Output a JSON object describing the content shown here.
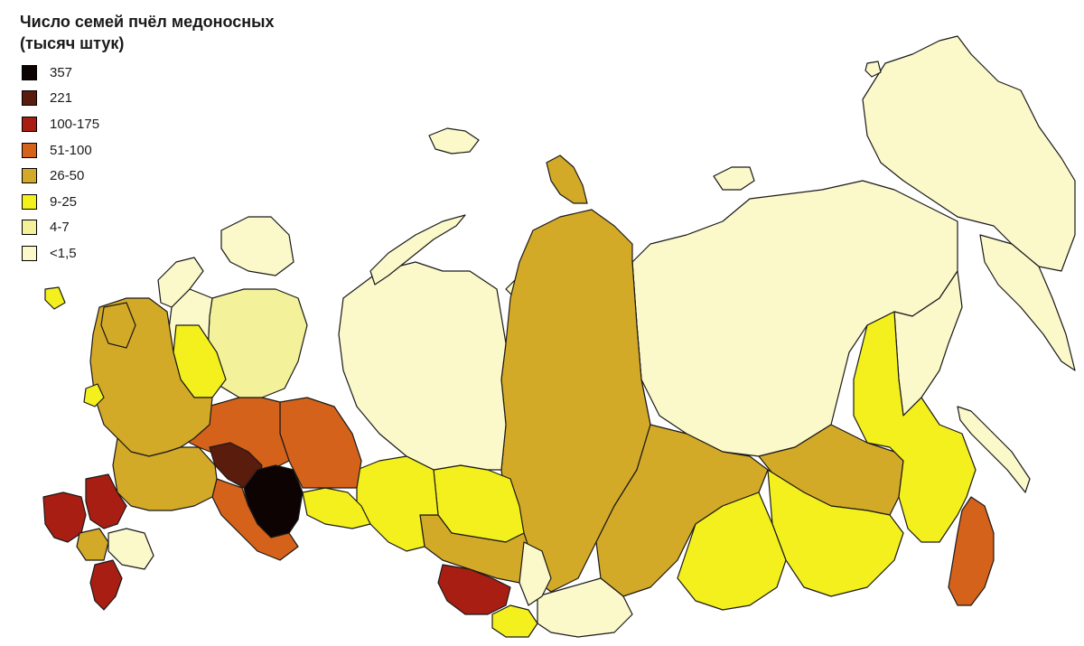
{
  "title": {
    "line1": "Число семей пчёл медоносных",
    "line2": "(тысяч штук)"
  },
  "legend": [
    {
      "label": "357",
      "color": "#0d0303"
    },
    {
      "label": "221",
      "color": "#5a1c0d"
    },
    {
      "label": "100-175",
      "color": "#a81e12"
    },
    {
      "label": "51-100",
      "color": "#d4621a"
    },
    {
      "label": "26-50",
      "color": "#d3a928"
    },
    {
      "label": "9-25",
      "color": "#f4f01e"
    },
    {
      "label": "4-7",
      "color": "#f3f19a"
    },
    {
      "label": "<1,5",
      "color": "#fbf8ca"
    }
  ],
  "regions": [
    {
      "name": "far-east-north",
      "cls": "<1,5"
    },
    {
      "name": "yakutia",
      "cls": "<1,5"
    },
    {
      "name": "north-siberia",
      "cls": "<1,5"
    },
    {
      "name": "ural-north",
      "cls": "<1,5"
    },
    {
      "name": "komi",
      "cls": "4-7"
    },
    {
      "name": "arkhangelsk",
      "cls": "<1,5"
    },
    {
      "name": "karelia",
      "cls": "<1,5"
    },
    {
      "name": "murmansk",
      "cls": "<1,5"
    },
    {
      "name": "krasnoyarsk",
      "cls": "26-50"
    },
    {
      "name": "irkutsk",
      "cls": "26-50"
    },
    {
      "name": "amur-khabarovsk",
      "cls": "26-50"
    },
    {
      "name": "zabaikalye",
      "cls": "9-25"
    },
    {
      "name": "buryatia",
      "cls": "9-25"
    },
    {
      "name": "tomsk-novosib",
      "cls": "9-25"
    },
    {
      "name": "altai-krai",
      "cls": "100-175"
    },
    {
      "name": "altai-rep",
      "cls": "9-25"
    },
    {
      "name": "kemerovo",
      "cls": "26-50"
    },
    {
      "name": "tyva",
      "cls": "<1,5"
    },
    {
      "name": "primorye",
      "cls": "51-100"
    },
    {
      "name": "khabarovsk-south",
      "cls": "9-25"
    },
    {
      "name": "kirov-perm",
      "cls": "51-100"
    },
    {
      "name": "sverdlovsk",
      "cls": "51-100"
    },
    {
      "name": "tatarstan",
      "cls": "221"
    },
    {
      "name": "bashkortostan",
      "cls": "357"
    },
    {
      "name": "orenburg-samara",
      "cls": "51-100"
    },
    {
      "name": "chelyabinsk-kurgan",
      "cls": "9-25"
    },
    {
      "name": "tyumen-omsk",
      "cls": "9-25"
    },
    {
      "name": "central",
      "cls": "26-50"
    },
    {
      "name": "volga",
      "cls": "26-50"
    },
    {
      "name": "krasnodar",
      "cls": "100-175"
    },
    {
      "name": "rostov-volgograd",
      "cls": "100-175"
    },
    {
      "name": "caucasus",
      "cls": "100-175"
    },
    {
      "name": "kalmykia",
      "cls": "<1,5"
    },
    {
      "name": "stavropol",
      "cls": "26-50"
    },
    {
      "name": "vologda",
      "cls": "9-25"
    },
    {
      "name": "pskov-leningrad",
      "cls": "26-50"
    },
    {
      "name": "kaliningrad",
      "cls": "9-25"
    },
    {
      "name": "sakhalin",
      "cls": "<1,5"
    },
    {
      "name": "kamchatka",
      "cls": "<1,5"
    },
    {
      "name": "novaya-zemlya",
      "cls": "<1,5"
    },
    {
      "name": "severnaya-zemlya",
      "cls": "26-50"
    },
    {
      "name": "franz-josef",
      "cls": "<1,5"
    },
    {
      "name": "new-siberian",
      "cls": "<1,5"
    },
    {
      "name": "wrangel",
      "cls": "<1,5"
    }
  ]
}
